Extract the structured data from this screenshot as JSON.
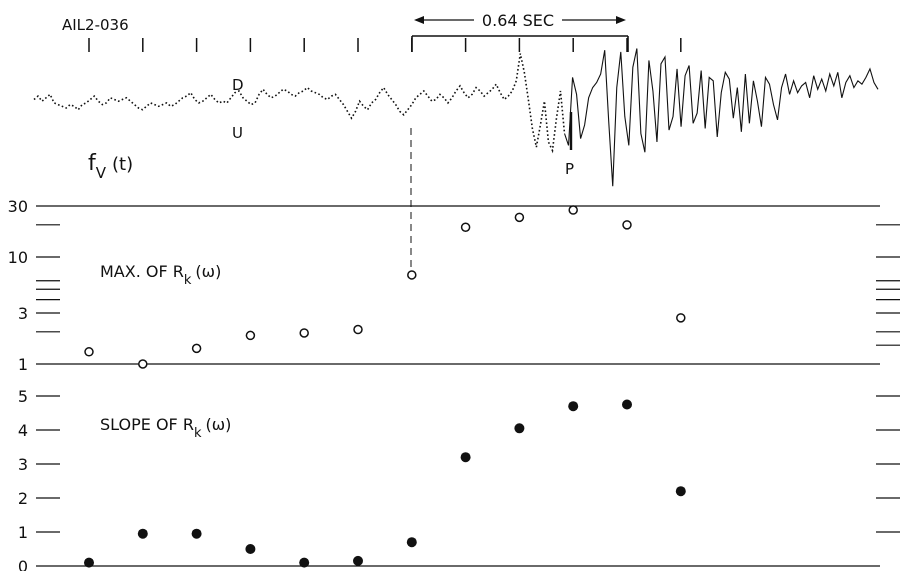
{
  "record_id": "AIL2-036",
  "interval": {
    "label": "0.64 SEC",
    "start_index": 7,
    "end_index": 10
  },
  "trace": {
    "name_main": "f",
    "name_sub": "V",
    "name_arg": "(t)",
    "up_label": "D",
    "down_label": "U",
    "pick_label": "P",
    "pick_index": 9
  },
  "chart_data": [
    {
      "type": "line",
      "title": "",
      "series": [
        {
          "name": "f_V(t)",
          "y": [
            0.5,
            0.7,
            0.4,
            0.6,
            0.8,
            0.3,
            0.2,
            0.1,
            0.0,
            0.2,
            0.1,
            -0.1,
            0.2,
            0.3,
            0.5,
            0.7,
            0.4,
            0.2,
            0.3,
            0.6,
            0.5,
            0.4,
            0.5,
            0.6,
            0.4,
            0.2,
            0.0,
            -0.1,
            0.1,
            0.3,
            0.2,
            0.1,
            0.2,
            0.3,
            0.1,
            0.2,
            0.4,
            0.6,
            0.7,
            0.9,
            0.5,
            0.3,
            0.4,
            0.6,
            0.8,
            0.5,
            0.3,
            0.4,
            0.3,
            0.6,
            0.9,
            1.0,
            0.6,
            0.4,
            0.2,
            0.3,
            0.8,
            1.1,
            0.8,
            0.6,
            0.7,
            0.9,
            1.1,
            1.0,
            0.8,
            0.7,
            0.9,
            1.0,
            1.2,
            1.0,
            0.9,
            0.8,
            0.6,
            0.5,
            0.7,
            0.8,
            0.5,
            0.2,
            -0.2,
            -0.6,
            -0.2,
            0.4,
            0.1,
            -0.1,
            0.3,
            0.5,
            0.9,
            1.2,
            0.8,
            0.5,
            0.2,
            -0.2,
            -0.4,
            -0.1,
            0.2,
            0.6,
            0.8,
            1.0,
            0.7,
            0.4,
            0.5,
            0.8,
            0.6,
            0.3,
            0.6,
            1.0,
            1.3,
            0.9,
            0.6,
            0.8,
            1.2,
            1.0,
            0.7,
            0.9,
            1.1,
            1.4,
            0.9,
            0.5,
            0.7,
            1.0,
            1.6,
            3.2,
            2.1,
            0.5,
            -1.2,
            -2.3,
            -1.0,
            0.4,
            -2.0,
            -2.5,
            -0.6,
            1.0,
            -1.5,
            -2.2,
            1.8,
            0.8,
            -1.8,
            -1.0,
            0.6,
            1.2,
            1.5,
            2.0,
            3.4,
            -0.8,
            -4.6,
            1.2,
            3.3,
            -0.5,
            -2.2,
            2.4,
            3.5,
            -1.5,
            -2.6,
            2.8,
            1.0,
            -2.0,
            2.6,
            3.0,
            -1.3,
            -0.5,
            2.3,
            -1.1,
            1.9,
            2.5,
            -0.9,
            -0.3,
            2.2,
            -1.2,
            1.8,
            1.6,
            -1.7,
            0.9,
            2.1,
            1.7,
            -0.6,
            1.2,
            -1.4,
            2.0,
            -0.9,
            1.6,
            0.4,
            -1.1,
            1.8,
            1.4,
            0.2,
            -0.7,
            1.2,
            2.0,
            0.8,
            1.6,
            0.9,
            1.3,
            1.5,
            0.6,
            1.9,
            1.1,
            1.7,
            1.0,
            2.0,
            1.3,
            2.1,
            0.6,
            1.5,
            1.9,
            1.2,
            1.6,
            1.4,
            1.8,
            2.3,
            1.5,
            1.1
          ]
        }
      ]
    },
    {
      "type": "scatter",
      "title": "MAX. OF R",
      "title_sub": "k",
      "title_arg": "(ω)",
      "yscale": "log",
      "ylim": [
        1,
        30
      ],
      "ytick_labels": [
        "1",
        "3",
        "10",
        "30"
      ],
      "x": [
        1,
        2,
        3,
        4,
        5,
        6,
        7,
        8,
        9,
        10,
        11,
        12
      ],
      "series": [
        {
          "values": [
            1.3,
            1.0,
            1.4,
            1.85,
            1.95,
            2.1,
            6.8,
            19,
            23.5,
            27.5,
            20,
            2.7
          ]
        }
      ]
    },
    {
      "type": "scatter",
      "title": "SLOPE OF R",
      "title_sub": "k",
      "title_arg": "(ω)",
      "ylim": [
        0,
        5
      ],
      "ytick_labels": [
        "0",
        "1",
        "2",
        "3",
        "4",
        "5"
      ],
      "x": [
        1,
        2,
        3,
        4,
        5,
        6,
        7,
        8,
        9,
        10,
        11,
        12
      ],
      "series": [
        {
          "values": [
            0.1,
            0.95,
            0.95,
            0.5,
            0.1,
            0.15,
            0.7,
            3.2,
            4.05,
            4.7,
            4.75,
            2.2
          ]
        }
      ]
    }
  ]
}
